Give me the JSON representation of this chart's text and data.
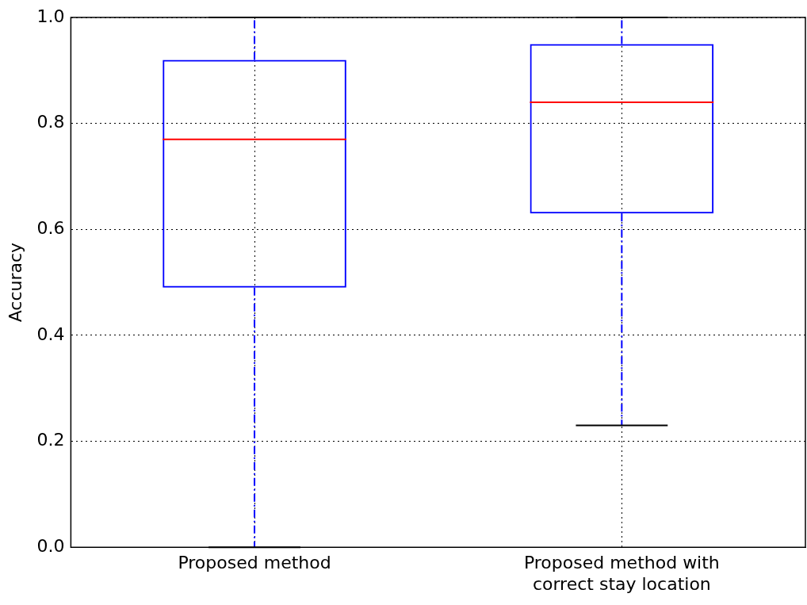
{
  "chart_data": {
    "type": "box",
    "ylabel": "Accuracy",
    "categories": [
      "Proposed method",
      "Proposed method with correct stay location"
    ],
    "series": [
      {
        "color": "#0000ff",
        "boxes": [
          {
            "low": 0.0,
            "q1": 0.49,
            "median": 0.77,
            "q3": 0.92,
            "high": 1.0
          },
          {
            "low": 0.23,
            "q1": 0.63,
            "median": 0.84,
            "q3": 0.95,
            "high": 1.0
          }
        ]
      }
    ],
    "ylim": [
      0,
      1
    ],
    "yticks": [
      {
        "value": 0,
        "label": "0.0"
      },
      {
        "value": 0.2,
        "label": "0.2"
      },
      {
        "value": 0.4,
        "label": "0.4"
      },
      {
        "value": 0.6,
        "label": "0.6"
      },
      {
        "value": 0.8,
        "label": "0.8"
      },
      {
        "value": 1,
        "label": "1.0"
      }
    ],
    "grid": true,
    "legend": false,
    "line_style": "dashed"
  }
}
